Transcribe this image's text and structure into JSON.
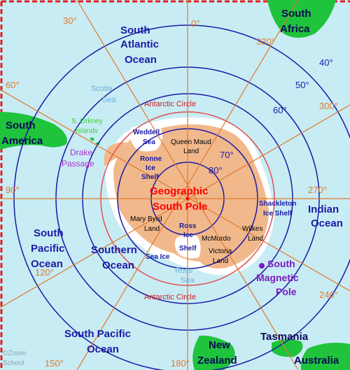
{
  "colors": {
    "sea": "#c8ecf4",
    "antarctica": "#f1b88c",
    "land_green": "#1fc33c",
    "rings": "#1a1aa6",
    "antarctic_circle": "#e05050",
    "meridians": "#e07a2a",
    "border": "#e02020"
  },
  "longitudes": {
    "l30": "30°",
    "l0": "0°",
    "l330": "330°",
    "l60": "60°",
    "l300": "300°",
    "l90": "90°",
    "l270": "270°",
    "l120": "120°",
    "l240": "240°",
    "l150": "150°",
    "l180": "180°"
  },
  "latitudes": {
    "lat40": "40°",
    "lat50": "50°",
    "lat60": "60°",
    "lat70": "70°",
    "lat80": "80°"
  },
  "oceans": {
    "south_atlantic_1": "South",
    "south_atlantic_2": "Atlantic",
    "south_atlantic_3": "Ocean",
    "indian_1": "Indian",
    "indian_2": "Ocean",
    "south_pacific_w_1": "South",
    "south_pacific_w_2": "Pacific",
    "south_pacific_w_3": "Ocean",
    "southern_1": "Southern",
    "southern_2": "Ocean",
    "south_pacific_s_1": "South Pacific",
    "south_pacific_s_2": "Ocean"
  },
  "continents": {
    "south_africa_1": "South",
    "south_africa_2": "Africa",
    "south_america_1": "South",
    "south_america_2": "America",
    "tasmania": "Tasmania",
    "new_zealand_1": "New",
    "new_zealand_2": "Zealand",
    "australia": "Australia"
  },
  "seas": {
    "scotia_1": "Scotia",
    "scotia_2": "Sea",
    "weddell_1": "Weddell",
    "weddell_2": "Sea",
    "ross_sea_1": "Ross",
    "ross_sea_2": "Sea",
    "ronne_1": "Ronne",
    "ronne_2": "Ice",
    "ronne_3": "Shelf",
    "ross_ice_1": "Ross",
    "ross_ice_2": "Ice",
    "ross_ice_3": "Shelf",
    "shackleton_1": "Shackleton",
    "shackleton_2": "Ice Shelf",
    "sea_ice": "Sea Ice"
  },
  "regions": {
    "queen_maud_1": "Queen Maud",
    "queen_maud_2": "Land",
    "mary_byrd_1": "Mary Byrd",
    "mary_byrd_2": "Land",
    "mcmurdo": "McMurdo",
    "wilkes_1": "Wilkes",
    "wilkes_2": "Land",
    "victoria_1": "Victoria",
    "victoria_2": "Land",
    "s_orkney_1": "S. Orkney",
    "s_orkney_2": "Islands",
    "drake_1": "Drake",
    "drake_2": "Passage"
  },
  "poles": {
    "geographic_1": "Geographic",
    "geographic_2": "South Pole",
    "magnetic_1": "South",
    "magnetic_2": "Magnetic",
    "magnetic_3": "Pole"
  },
  "circle": {
    "top": "Antarctic Circle",
    "bottom": "Antarctic Circle"
  },
  "credit": {
    "line1": "©Zoom",
    "line2": "School"
  }
}
